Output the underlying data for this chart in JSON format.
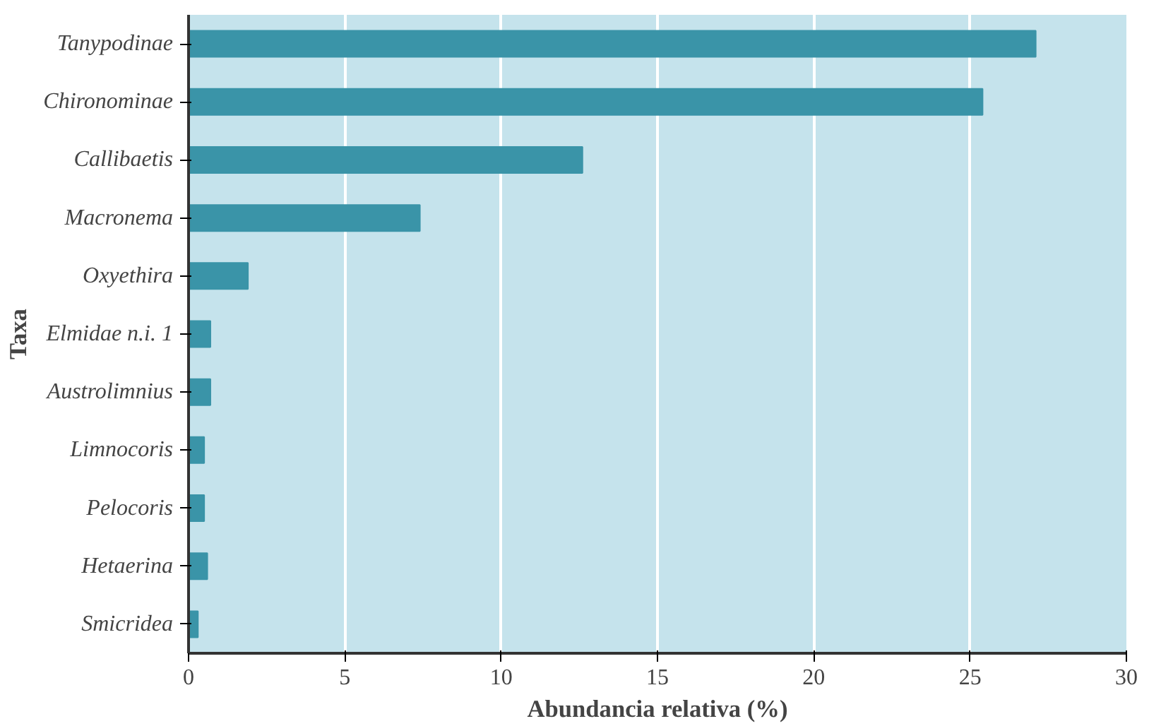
{
  "chart_data": {
    "type": "bar",
    "orientation": "horizontal",
    "xlabel": "Abundancia relativa (%)",
    "ylabel": "Taxa",
    "categories": [
      "Tanypodinae",
      "Chironominae",
      "Callibaetis",
      "Macronema",
      "Oxyethira",
      "Elmidae n.i. 1",
      "Austrolimnius",
      "Limnocoris",
      "Pelocoris",
      "Hetaerina",
      "Smicridea"
    ],
    "values": [
      27.1,
      25.4,
      12.6,
      7.4,
      1.9,
      0.7,
      0.7,
      0.5,
      0.5,
      0.6,
      0.3
    ],
    "color": "#3a94a8",
    "xlim": [
      0,
      30
    ],
    "xticks": [
      0,
      5,
      10,
      15,
      20,
      25,
      30
    ],
    "grid": "x"
  }
}
